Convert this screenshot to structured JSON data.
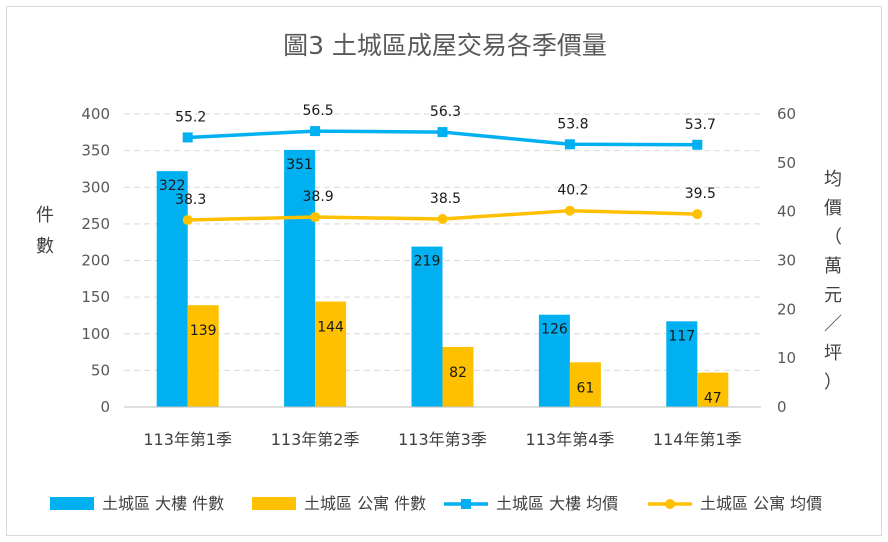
{
  "chart_data": {
    "type": "bar",
    "title": "圖3   土城區成屋交易各季價量",
    "categories": [
      "113年第1季",
      "113年第2季",
      "113年第3季",
      "113年第4季",
      "114年第1季"
    ],
    "y_left": {
      "label": "件數",
      "ylim": [
        0,
        400
      ],
      "ticks": [
        "0",
        "50",
        "100",
        "150",
        "200",
        "250",
        "300",
        "350",
        "400"
      ]
    },
    "y_right": {
      "label": "均價（萬元／坪）",
      "ylim": [
        0,
        60
      ],
      "ticks": [
        "0",
        "10",
        "20",
        "30",
        "40",
        "50",
        "60"
      ]
    },
    "grid": true,
    "legend_position": "bottom",
    "series": [
      {
        "name": "土城區 大樓 件數",
        "type": "bar",
        "axis": "left",
        "color": "#00b0f0",
        "values": [
          322,
          351,
          219,
          126,
          117
        ]
      },
      {
        "name": "土城區 公寓 件數",
        "type": "bar",
        "axis": "left",
        "color": "#ffc000",
        "values": [
          139,
          144,
          82,
          61,
          47
        ]
      },
      {
        "name": "土城區 大樓 均價",
        "type": "line",
        "marker": "square",
        "axis": "right",
        "color": "#00b0f0",
        "values": [
          55.2,
          56.5,
          56.3,
          53.8,
          53.7
        ]
      },
      {
        "name": "土城區 公寓 均價",
        "type": "line",
        "marker": "circle",
        "axis": "right",
        "color": "#ffc000",
        "values": [
          38.3,
          38.9,
          38.5,
          40.2,
          39.5
        ]
      }
    ]
  }
}
